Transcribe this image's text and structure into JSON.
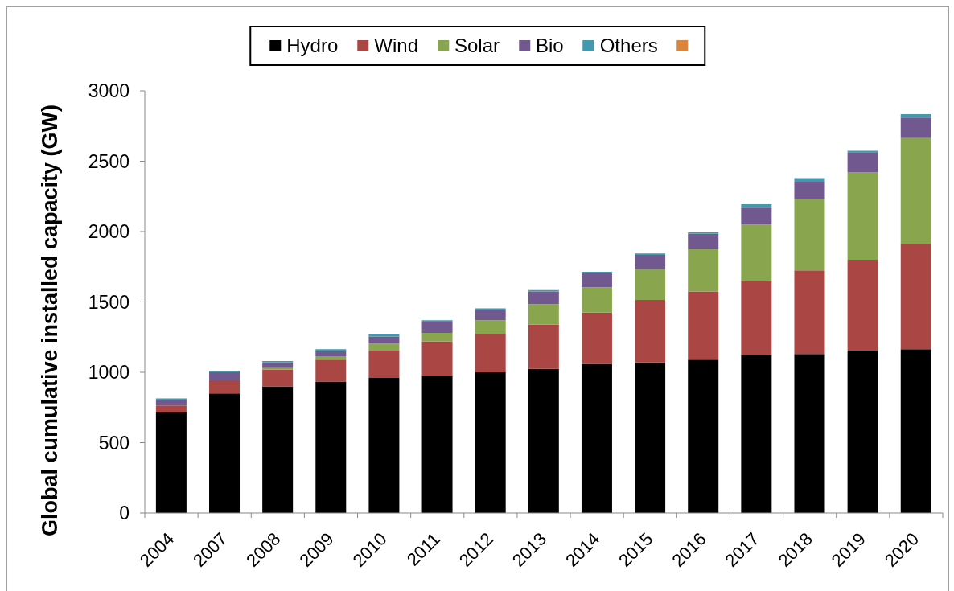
{
  "chart_data": {
    "type": "bar",
    "stacked": true,
    "ylabel": "Global cumulative installed capacity (GW)",
    "categories": [
      "2004",
      "2007",
      "2008",
      "2009",
      "2010",
      "2011",
      "2012",
      "2013",
      "2014",
      "2015",
      "2016",
      "2017",
      "2018",
      "2019",
      "2020"
    ],
    "series": [
      {
        "name": "Hydro",
        "color": "#000000",
        "values": [
          715,
          850,
          900,
          935,
          960,
          975,
          1000,
          1025,
          1060,
          1070,
          1090,
          1120,
          1130,
          1155,
          1165
        ]
      },
      {
        "name": "Wind",
        "color": "#aa4643",
        "values": [
          50,
          95,
          120,
          155,
          195,
          245,
          275,
          315,
          365,
          445,
          485,
          530,
          595,
          645,
          750
        ]
      },
      {
        "name": "Solar",
        "color": "#89a54e",
        "values": [
          null,
          null,
          10,
          25,
          50,
          60,
          95,
          145,
          180,
          220,
          300,
          400,
          510,
          620,
          750
        ]
      },
      {
        "name": "Bio",
        "color": "#71588f",
        "values": [
          40,
          55,
          40,
          35,
          50,
          80,
          75,
          90,
          100,
          100,
          110,
          120,
          120,
          145,
          145
        ]
      },
      {
        "name": "Others",
        "color": "#4198af",
        "values": [
          10,
          10,
          10,
          15,
          15,
          10,
          10,
          10,
          10,
          10,
          10,
          25,
          25,
          10,
          25
        ]
      },
      {
        "color": "#db843d",
        "values": [
          null,
          null,
          null,
          null,
          null,
          null,
          null,
          null,
          null,
          null,
          null,
          null,
          null,
          null,
          null
        ]
      }
    ],
    "ylim": [
      0,
      3000
    ],
    "yticks": [
      0,
      500,
      1000,
      1500,
      2000,
      2500,
      3000
    ],
    "grid": false,
    "legend": "top"
  }
}
